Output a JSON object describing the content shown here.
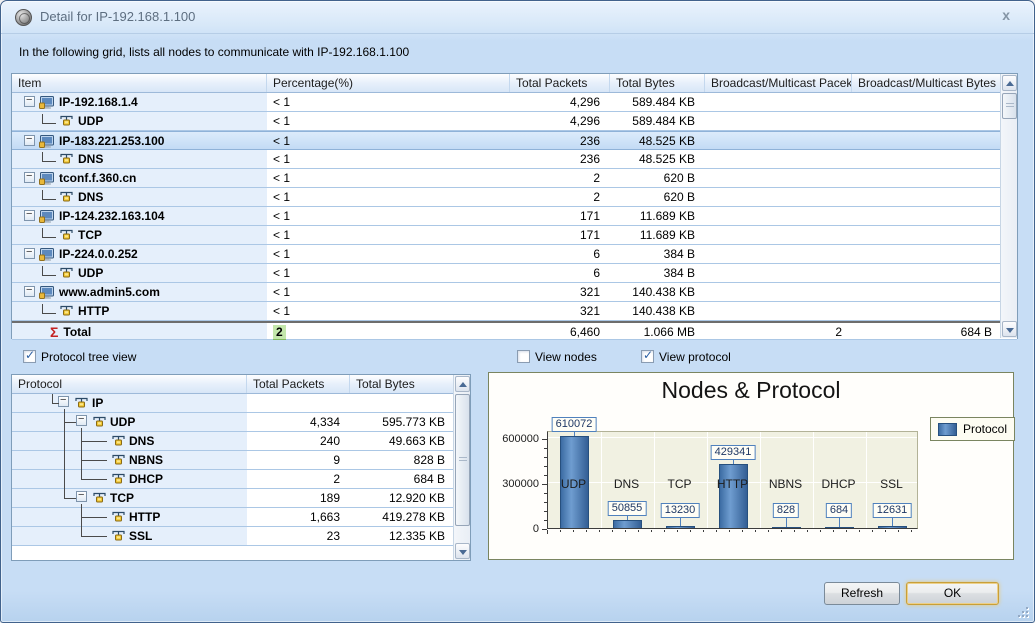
{
  "window": {
    "title": "Detail for IP-192.168.1.100",
    "close_label": "x"
  },
  "intro": "In the following grid, lists all nodes to communicate with IP-192.168.1.100",
  "node_table": {
    "columns": [
      "Item",
      "Percentage(%)",
      "Total Packets",
      "Total Bytes",
      "Broadcast/Multicast Pacekts",
      "Broadcast/Multicast Bytes"
    ],
    "rows": [
      {
        "item": "IP-192.168.1.4",
        "kind": "node",
        "selected": false,
        "percentage": "< 1",
        "total_packets": "4,296",
        "total_bytes": "589.484 KB",
        "bm_packets": "",
        "bm_bytes": ""
      },
      {
        "item": "UDP",
        "kind": "protocol",
        "selected": false,
        "percentage": "< 1",
        "total_packets": "4,296",
        "total_bytes": "589.484 KB",
        "bm_packets": "",
        "bm_bytes": ""
      },
      {
        "item": "IP-183.221.253.100",
        "kind": "node",
        "selected": true,
        "percentage": "< 1",
        "total_packets": "236",
        "total_bytes": "48.525 KB",
        "bm_packets": "",
        "bm_bytes": ""
      },
      {
        "item": "DNS",
        "kind": "protocol",
        "selected": false,
        "percentage": "< 1",
        "total_packets": "236",
        "total_bytes": "48.525 KB",
        "bm_packets": "",
        "bm_bytes": ""
      },
      {
        "item": "tconf.f.360.cn",
        "kind": "node",
        "selected": false,
        "percentage": "< 1",
        "total_packets": "2",
        "total_bytes": "620 B",
        "bm_packets": "",
        "bm_bytes": ""
      },
      {
        "item": "DNS",
        "kind": "protocol",
        "selected": false,
        "percentage": "< 1",
        "total_packets": "2",
        "total_bytes": "620 B",
        "bm_packets": "",
        "bm_bytes": ""
      },
      {
        "item": "IP-124.232.163.104",
        "kind": "node",
        "selected": false,
        "percentage": "< 1",
        "total_packets": "171",
        "total_bytes": "11.689 KB",
        "bm_packets": "",
        "bm_bytes": ""
      },
      {
        "item": "TCP",
        "kind": "protocol",
        "selected": false,
        "percentage": "< 1",
        "total_packets": "171",
        "total_bytes": "11.689 KB",
        "bm_packets": "",
        "bm_bytes": ""
      },
      {
        "item": "IP-224.0.0.252",
        "kind": "node",
        "selected": false,
        "percentage": "< 1",
        "total_packets": "6",
        "total_bytes": "384 B",
        "bm_packets": "",
        "bm_bytes": ""
      },
      {
        "item": "UDP",
        "kind": "protocol",
        "selected": false,
        "percentage": "< 1",
        "total_packets": "6",
        "total_bytes": "384 B",
        "bm_packets": "",
        "bm_bytes": ""
      },
      {
        "item": "www.admin5.com",
        "kind": "node",
        "selected": false,
        "percentage": "< 1",
        "total_packets": "321",
        "total_bytes": "140.438 KB",
        "bm_packets": "",
        "bm_bytes": ""
      },
      {
        "item": "HTTP",
        "kind": "protocol",
        "selected": false,
        "percentage": "< 1",
        "total_packets": "321",
        "total_bytes": "140.438 KB",
        "bm_packets": "",
        "bm_bytes": ""
      },
      {
        "item": "Total",
        "kind": "total",
        "selected": false,
        "percentage": "2",
        "total_packets": "6,460",
        "total_bytes": "1.066 MB",
        "bm_packets": "2",
        "bm_bytes": "684 B"
      }
    ]
  },
  "view_options": {
    "protocol_tree_view": {
      "label": "Protocol tree view",
      "checked": true
    },
    "view_nodes": {
      "label": "View nodes",
      "checked": false
    },
    "view_protocol": {
      "label": "View protocol",
      "checked": true
    }
  },
  "protocol_table": {
    "columns": [
      "Protocol",
      "Total Packets",
      "Total Bytes"
    ],
    "rows": [
      {
        "protocol": "IP",
        "level": 0,
        "expandable": true,
        "total_packets": "",
        "total_bytes": ""
      },
      {
        "protocol": "UDP",
        "level": 1,
        "expandable": true,
        "total_packets": "4,334",
        "total_bytes": "595.773 KB"
      },
      {
        "protocol": "DNS",
        "level": 2,
        "expandable": false,
        "total_packets": "240",
        "total_bytes": "49.663 KB"
      },
      {
        "protocol": "NBNS",
        "level": 2,
        "expandable": false,
        "total_packets": "9",
        "total_bytes": "828 B"
      },
      {
        "protocol": "DHCP",
        "level": 2,
        "expandable": false,
        "total_packets": "2",
        "total_bytes": "684 B"
      },
      {
        "protocol": "TCP",
        "level": 1,
        "expandable": true,
        "total_packets": "189",
        "total_bytes": "12.920 KB"
      },
      {
        "protocol": "HTTP",
        "level": 2,
        "expandable": false,
        "total_packets": "1,663",
        "total_bytes": "419.278 KB"
      },
      {
        "protocol": "SSL",
        "level": 2,
        "expandable": false,
        "total_packets": "23",
        "total_bytes": "12.335 KB"
      }
    ]
  },
  "chart_data": {
    "type": "bar",
    "title": "Nodes & Protocol",
    "categories": [
      "UDP",
      "DNS",
      "TCP",
      "HTTP",
      "NBNS",
      "DHCP",
      "SSL"
    ],
    "values": [
      610072,
      50855,
      13230,
      429341,
      828,
      684,
      12631
    ],
    "series_name": "Protocol",
    "xlabel": "",
    "ylabel": "",
    "ylim": [
      0,
      650000
    ],
    "yticks": [
      0,
      300000,
      600000
    ],
    "grid": true,
    "legend_position": "top-right",
    "bar_color": "#3f6fa8"
  },
  "buttons": {
    "refresh": "Refresh",
    "ok": "OK"
  },
  "colors": {
    "dialog_bg": "#c7ddf5",
    "selection_bg": "#c3dbf5",
    "tree_column_bg": "#e5effb",
    "row_line": "#abc7e5",
    "bar_color": "#3f6fa8",
    "total_highlight_green": "#c3e7ab",
    "title_text": "#5d6e80"
  }
}
